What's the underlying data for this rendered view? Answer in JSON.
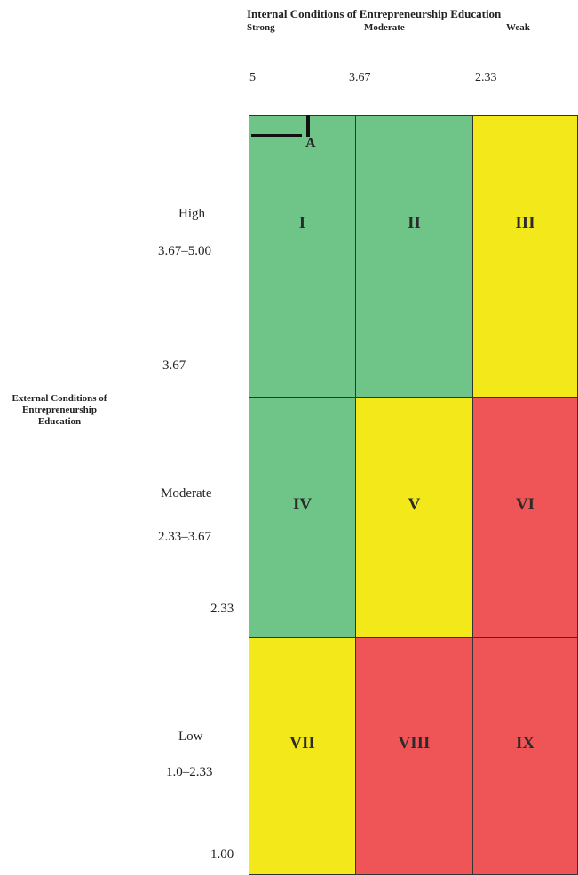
{
  "header": {
    "title": "Internal Conditions of Entrepreneurship Education",
    "columns": [
      "Strong",
      "Moderate",
      "Weak"
    ],
    "scale": [
      "5",
      "3.67",
      "2.33"
    ]
  },
  "side_label": "External Conditions of Entrepreneurship Education",
  "rows": [
    {
      "name": "High",
      "range": "3.67–5.00",
      "boundary": "3.67"
    },
    {
      "name": "Moderate",
      "range": "2.33–3.67",
      "boundary": "2.33"
    },
    {
      "name": "Low",
      "range": "1.0–2.33",
      "boundary": "1.00"
    }
  ],
  "cells": [
    {
      "label": "I",
      "color": "#6ec587"
    },
    {
      "label": "II",
      "color": "#6ec587"
    },
    {
      "label": "III",
      "color": "#f2e81a"
    },
    {
      "label": "IV",
      "color": "#6ec587"
    },
    {
      "label": "V",
      "color": "#f2e81a"
    },
    {
      "label": "VI",
      "color": "#ef5456"
    },
    {
      "label": "VII",
      "color": "#f2e81a"
    },
    {
      "label": "VIII",
      "color": "#ef5456"
    },
    {
      "label": "IX",
      "color": "#ef5456"
    }
  ],
  "marker": {
    "label": "A"
  }
}
